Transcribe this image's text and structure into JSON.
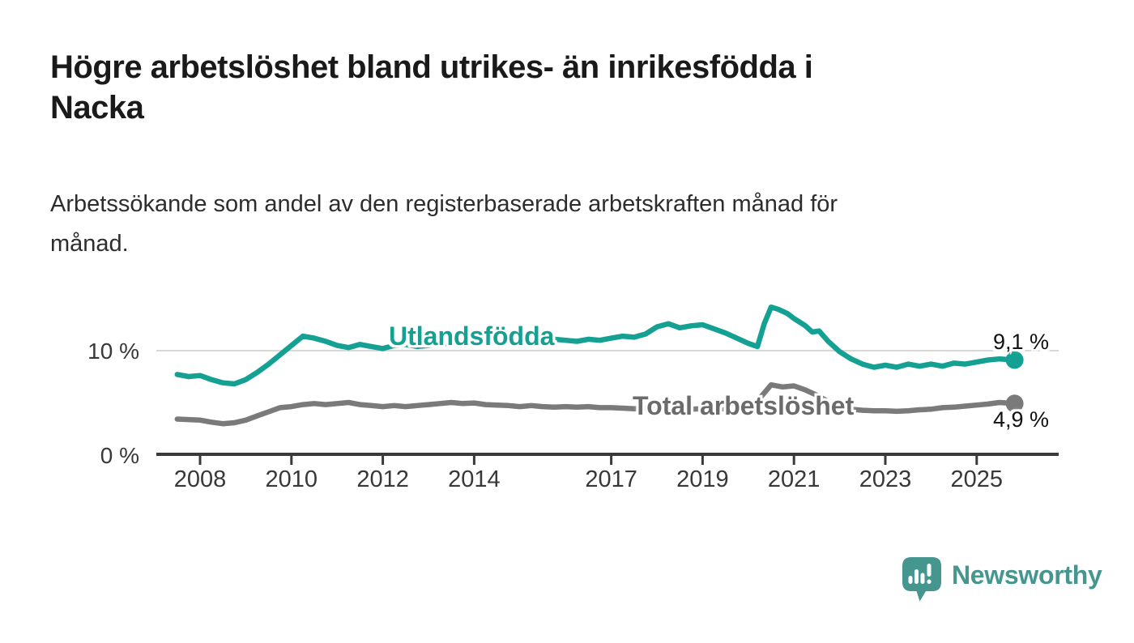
{
  "header": {
    "title_lines": [
      "Högre arbetslöshet bland utrikes- än inrikesfödda i",
      "Nacka"
    ],
    "subtitle_lines": [
      "Arbetssökande som andel av den registerbaserade arbetskraften månad för",
      "månad."
    ]
  },
  "branding": {
    "name": "Newsworthy",
    "icon": "bar-chart-speech-bubble-icon",
    "color": "#45968e"
  },
  "chart_data": {
    "type": "line",
    "unit": "%",
    "frequency": "monthly",
    "grid": "single horizontal gridline at 10 %",
    "legend_position": "inline labels on lines, end-value labels at right",
    "x_axis": {
      "range": [
        2007.5,
        2026.1
      ],
      "ticks": [
        "2008",
        "2010",
        "2012",
        "2014",
        "2017",
        "2019",
        "2021",
        "2023",
        "2025"
      ],
      "tick_years": [
        2008,
        2010,
        2012,
        2014,
        2017,
        2019,
        2021,
        2023,
        2025
      ]
    },
    "y_axis": {
      "range": [
        0,
        15.5
      ],
      "ticks": [
        {
          "value": 10,
          "label": "10 %"
        },
        {
          "value": 0,
          "label": "0 %"
        }
      ]
    },
    "series": [
      {
        "name": "Utlandsfödda",
        "color": "#14a092",
        "end_label": "9,1 %",
        "end_value": 9.1,
        "points": [
          [
            2007.5,
            7.7
          ],
          [
            2007.75,
            7.5
          ],
          [
            2008,
            7.6
          ],
          [
            2008.25,
            7.2
          ],
          [
            2008.5,
            6.9
          ],
          [
            2008.75,
            6.8
          ],
          [
            2009,
            7.2
          ],
          [
            2009.25,
            7.9
          ],
          [
            2009.5,
            8.7
          ],
          [
            2009.75,
            9.6
          ],
          [
            2010,
            10.5
          ],
          [
            2010.25,
            11.4
          ],
          [
            2010.5,
            11.2
          ],
          [
            2010.75,
            10.9
          ],
          [
            2011,
            10.5
          ],
          [
            2011.25,
            10.3
          ],
          [
            2011.5,
            10.6
          ],
          [
            2011.75,
            10.4
          ],
          [
            2012,
            10.2
          ],
          [
            2012.25,
            10.5
          ],
          [
            2012.5,
            10.6
          ],
          [
            2012.75,
            10.4
          ],
          [
            2013,
            10.5
          ],
          [
            2013.25,
            10.7
          ],
          [
            2013.5,
            10.6
          ],
          [
            2013.75,
            10.7
          ],
          [
            2014,
            10.8
          ],
          [
            2014.25,
            10.7
          ],
          [
            2014.5,
            10.9
          ],
          [
            2014.75,
            10.8
          ],
          [
            2015,
            10.9
          ],
          [
            2015.25,
            11.0
          ],
          [
            2015.5,
            10.9
          ],
          [
            2015.75,
            11.1
          ],
          [
            2016,
            11.0
          ],
          [
            2016.25,
            10.9
          ],
          [
            2016.5,
            11.1
          ],
          [
            2016.75,
            11.0
          ],
          [
            2017,
            11.2
          ],
          [
            2017.25,
            11.4
          ],
          [
            2017.5,
            11.3
          ],
          [
            2017.75,
            11.6
          ],
          [
            2018,
            12.3
          ],
          [
            2018.25,
            12.6
          ],
          [
            2018.5,
            12.2
          ],
          [
            2018.75,
            12.4
          ],
          [
            2019,
            12.5
          ],
          [
            2019.25,
            12.1
          ],
          [
            2019.5,
            11.7
          ],
          [
            2019.75,
            11.2
          ],
          [
            2020,
            10.7
          ],
          [
            2020.2,
            10.4
          ],
          [
            2020.35,
            12.6
          ],
          [
            2020.5,
            14.2
          ],
          [
            2020.65,
            14.0
          ],
          [
            2020.85,
            13.6
          ],
          [
            2021,
            13.1
          ],
          [
            2021.25,
            12.4
          ],
          [
            2021.4,
            11.8
          ],
          [
            2021.55,
            11.9
          ],
          [
            2021.75,
            10.9
          ],
          [
            2022,
            9.9
          ],
          [
            2022.25,
            9.2
          ],
          [
            2022.5,
            8.7
          ],
          [
            2022.75,
            8.4
          ],
          [
            2023,
            8.6
          ],
          [
            2023.25,
            8.4
          ],
          [
            2023.5,
            8.7
          ],
          [
            2023.75,
            8.5
          ],
          [
            2024,
            8.7
          ],
          [
            2024.25,
            8.5
          ],
          [
            2024.5,
            8.8
          ],
          [
            2024.75,
            8.7
          ],
          [
            2025,
            8.9
          ],
          [
            2025.25,
            9.1
          ],
          [
            2025.5,
            9.2
          ],
          [
            2025.83,
            9.1
          ]
        ]
      },
      {
        "name": "Total arbetslöshet",
        "color": "#7a7a7a",
        "end_label": "4,9 %",
        "end_value": 4.9,
        "points": [
          [
            2007.5,
            3.4
          ],
          [
            2007.75,
            3.35
          ],
          [
            2008,
            3.3
          ],
          [
            2008.25,
            3.1
          ],
          [
            2008.5,
            2.95
          ],
          [
            2008.75,
            3.05
          ],
          [
            2009,
            3.3
          ],
          [
            2009.25,
            3.7
          ],
          [
            2009.5,
            4.1
          ],
          [
            2009.75,
            4.5
          ],
          [
            2010,
            4.6
          ],
          [
            2010.25,
            4.8
          ],
          [
            2010.5,
            4.9
          ],
          [
            2010.75,
            4.8
          ],
          [
            2011,
            4.9
          ],
          [
            2011.25,
            5.0
          ],
          [
            2011.5,
            4.8
          ],
          [
            2011.75,
            4.7
          ],
          [
            2012,
            4.6
          ],
          [
            2012.25,
            4.7
          ],
          [
            2012.5,
            4.6
          ],
          [
            2012.75,
            4.7
          ],
          [
            2013,
            4.8
          ],
          [
            2013.25,
            4.9
          ],
          [
            2013.5,
            5.0
          ],
          [
            2013.75,
            4.9
          ],
          [
            2014,
            4.95
          ],
          [
            2014.25,
            4.8
          ],
          [
            2014.5,
            4.75
          ],
          [
            2014.75,
            4.7
          ],
          [
            2015,
            4.6
          ],
          [
            2015.25,
            4.7
          ],
          [
            2015.5,
            4.6
          ],
          [
            2015.75,
            4.55
          ],
          [
            2016,
            4.6
          ],
          [
            2016.25,
            4.55
          ],
          [
            2016.5,
            4.6
          ],
          [
            2016.75,
            4.5
          ],
          [
            2017,
            4.5
          ],
          [
            2017.25,
            4.45
          ],
          [
            2017.5,
            4.4
          ],
          [
            2017.75,
            4.45
          ],
          [
            2018,
            4.4
          ],
          [
            2018.25,
            4.35
          ],
          [
            2018.5,
            4.4
          ],
          [
            2018.75,
            4.35
          ],
          [
            2019,
            4.4
          ],
          [
            2019.25,
            4.35
          ],
          [
            2019.5,
            4.4
          ],
          [
            2019.75,
            4.45
          ],
          [
            2020,
            4.55
          ],
          [
            2020.25,
            5.4
          ],
          [
            2020.5,
            6.7
          ],
          [
            2020.75,
            6.5
          ],
          [
            2021,
            6.6
          ],
          [
            2021.25,
            6.2
          ],
          [
            2021.5,
            5.7
          ],
          [
            2021.75,
            5.1
          ],
          [
            2022,
            4.6
          ],
          [
            2022.25,
            4.35
          ],
          [
            2022.5,
            4.25
          ],
          [
            2022.75,
            4.2
          ],
          [
            2023,
            4.2
          ],
          [
            2023.25,
            4.15
          ],
          [
            2023.5,
            4.2
          ],
          [
            2023.75,
            4.3
          ],
          [
            2024,
            4.35
          ],
          [
            2024.25,
            4.5
          ],
          [
            2024.5,
            4.55
          ],
          [
            2024.75,
            4.65
          ],
          [
            2025,
            4.75
          ],
          [
            2025.25,
            4.85
          ],
          [
            2025.5,
            5.0
          ],
          [
            2025.83,
            4.9
          ]
        ]
      }
    ]
  }
}
